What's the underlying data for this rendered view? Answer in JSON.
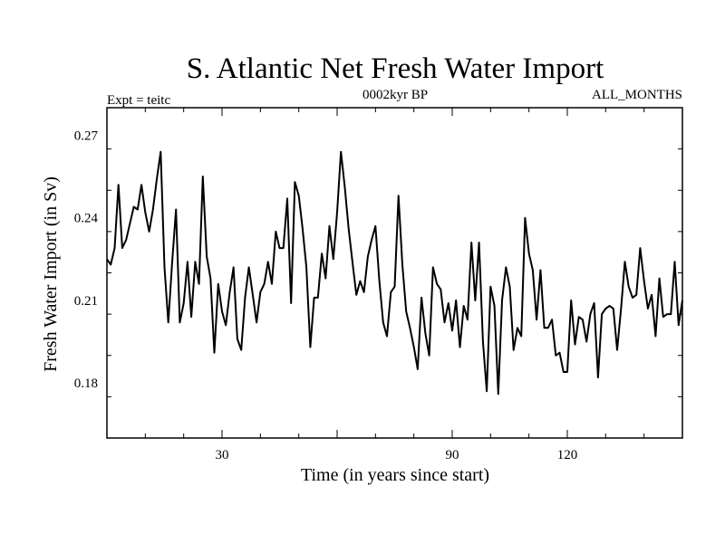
{
  "chart_data": {
    "type": "line",
    "title": "S. Atlantic Net Fresh Water Import",
    "subtitle_left": "Expt = teitc",
    "subtitle_center": "0002kyr BP",
    "subtitle_right": "ALL_MONTHS",
    "xlabel": "Time (in years since start)",
    "ylabel": "Fresh Water Import (in Sv)",
    "xlim": [
      0,
      150
    ],
    "ylim": [
      0.16,
      0.28
    ],
    "x_ticks": [
      30,
      60,
      90,
      120
    ],
    "x_tick_labels": [
      "30",
      "",
      "90",
      "120"
    ],
    "y_ticks": [
      0.18,
      0.21,
      0.24,
      0.27
    ],
    "y_tick_labels": [
      "0.18",
      "0.21",
      "0.24",
      "0.27"
    ],
    "grid": false,
    "series": [
      {
        "name": "Fresh Water Import",
        "color": "#000000",
        "x": [
          0,
          1,
          2,
          3,
          4,
          5,
          6,
          7,
          8,
          9,
          10,
          11,
          12,
          13,
          14,
          15,
          16,
          17,
          18,
          19,
          20,
          21,
          22,
          23,
          24,
          25,
          26,
          27,
          28,
          29,
          30,
          31,
          32,
          33,
          34,
          35,
          36,
          37,
          38,
          39,
          40,
          41,
          42,
          43,
          44,
          45,
          46,
          47,
          48,
          49,
          50,
          51,
          52,
          53,
          54,
          55,
          56,
          57,
          58,
          59,
          60,
          61,
          62,
          63,
          64,
          65,
          66,
          67,
          68,
          69,
          70,
          71,
          72,
          73,
          74,
          75,
          76,
          77,
          78,
          79,
          80,
          81,
          82,
          83,
          84,
          85,
          86,
          87,
          88,
          89,
          90,
          91,
          92,
          93,
          94,
          95,
          96,
          97,
          98,
          99,
          100,
          101,
          102,
          103,
          104,
          105,
          106,
          107,
          108,
          109,
          110,
          111,
          112,
          113,
          114,
          115,
          116,
          117,
          118,
          119,
          120,
          121,
          122,
          123,
          124,
          125,
          126,
          127,
          128,
          129,
          130,
          131,
          132,
          133,
          134,
          135,
          136,
          137,
          138,
          139,
          140,
          141,
          142,
          143,
          144,
          145,
          146,
          147,
          148,
          149,
          150
        ],
        "values": [
          0.225,
          0.223,
          0.229,
          0.252,
          0.229,
          0.232,
          0.238,
          0.244,
          0.243,
          0.252,
          0.242,
          0.235,
          0.243,
          0.254,
          0.264,
          0.222,
          0.202,
          0.224,
          0.243,
          0.202,
          0.209,
          0.224,
          0.204,
          0.224,
          0.216,
          0.255,
          0.226,
          0.218,
          0.191,
          0.216,
          0.206,
          0.201,
          0.213,
          0.222,
          0.196,
          0.192,
          0.211,
          0.222,
          0.212,
          0.202,
          0.213,
          0.216,
          0.224,
          0.216,
          0.235,
          0.229,
          0.229,
          0.247,
          0.209,
          0.253,
          0.248,
          0.236,
          0.222,
          0.193,
          0.211,
          0.211,
          0.227,
          0.218,
          0.237,
          0.225,
          0.242,
          0.264,
          0.251,
          0.236,
          0.224,
          0.212,
          0.217,
          0.213,
          0.226,
          0.232,
          0.237,
          0.217,
          0.202,
          0.197,
          0.213,
          0.215,
          0.248,
          0.223,
          0.206,
          0.2,
          0.193,
          0.185,
          0.211,
          0.198,
          0.19,
          0.222,
          0.216,
          0.214,
          0.202,
          0.209,
          0.199,
          0.21,
          0.193,
          0.208,
          0.203,
          0.231,
          0.21,
          0.231,
          0.195,
          0.177,
          0.215,
          0.208,
          0.176,
          0.21,
          0.222,
          0.215,
          0.192,
          0.2,
          0.197,
          0.24,
          0.227,
          0.221,
          0.203,
          0.221,
          0.2,
          0.2,
          0.203,
          0.19,
          0.191,
          0.184,
          0.184,
          0.21,
          0.194,
          0.204,
          0.203,
          0.195,
          0.205,
          0.209,
          0.182,
          0.205,
          0.207,
          0.208,
          0.207,
          0.192,
          0.207,
          0.224,
          0.215,
          0.211,
          0.212,
          0.229,
          0.217,
          0.207,
          0.212,
          0.197,
          0.218,
          0.204,
          0.205,
          0.205,
          0.224,
          0.201,
          0.21
        ]
      }
    ]
  }
}
